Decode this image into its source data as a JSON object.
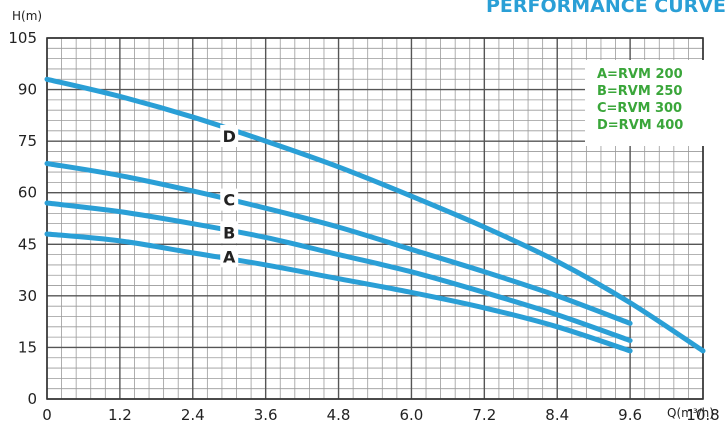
{
  "banner": {
    "title": "PERFORMANCE CURVE",
    "color": "#2a9fd6"
  },
  "colors": {
    "curve": "#2a9fd6",
    "legend_text": "#3aa63a",
    "grid_major": "#555555",
    "grid_minor": "#9a9a9a",
    "background": "#ffffff"
  },
  "chart_data": {
    "type": "line",
    "title": "PERFORMANCE CURVE",
    "xlabel": "Q(m³/h)",
    "ylabel": "H(m)",
    "xlim": [
      0,
      10.8
    ],
    "ylim": [
      0,
      105
    ],
    "x_ticks": [
      "0",
      "1.2",
      "2.4",
      "3.6",
      "4.8",
      "6.0",
      "7.2",
      "8.4",
      "9.6",
      "10.8"
    ],
    "y_ticks": [
      "0",
      "15",
      "30",
      "45",
      "60",
      "75",
      "90",
      "105"
    ],
    "x_tick_values": [
      0,
      1.2,
      2.4,
      3.6,
      4.8,
      6.0,
      7.2,
      8.4,
      9.6,
      10.8
    ],
    "y_tick_values": [
      0,
      15,
      30,
      45,
      60,
      75,
      90,
      105
    ],
    "grid": true,
    "minor_divisions": 5,
    "legend_position": "top-right",
    "legend": [
      "A=RVM 200",
      "B=RVM 250",
      "C=RVM 300",
      "D=RVM 400"
    ],
    "series": [
      {
        "name": "A",
        "label_at": [
          3.0,
          41.5
        ],
        "x": [
          0,
          1.2,
          2.4,
          3.6,
          4.8,
          6.0,
          7.2,
          8.4,
          9.6
        ],
        "y": [
          48,
          46,
          42.5,
          39,
          35,
          31,
          26.5,
          21,
          14
        ]
      },
      {
        "name": "B",
        "label_at": [
          3.0,
          48.5
        ],
        "x": [
          0,
          1.2,
          2.4,
          3.6,
          4.8,
          6.0,
          7.2,
          8.4,
          9.6
        ],
        "y": [
          57,
          54.5,
          51,
          47,
          42,
          37,
          31,
          24.5,
          17
        ]
      },
      {
        "name": "C",
        "label_at": [
          3.0,
          58
        ],
        "x": [
          0,
          1.2,
          2.4,
          3.6,
          4.8,
          6.0,
          7.2,
          8.4,
          9.6
        ],
        "y": [
          68.5,
          65,
          60.5,
          55.5,
          50,
          43.5,
          37,
          30,
          22
        ]
      },
      {
        "name": "D",
        "label_at": [
          3.0,
          76.5
        ],
        "x": [
          0,
          1.2,
          2.4,
          3.6,
          4.8,
          6.0,
          7.2,
          8.4,
          9.6,
          10.8
        ],
        "y": [
          93,
          88,
          82,
          75,
          67.5,
          59,
          50,
          40,
          28,
          14
        ]
      }
    ]
  }
}
